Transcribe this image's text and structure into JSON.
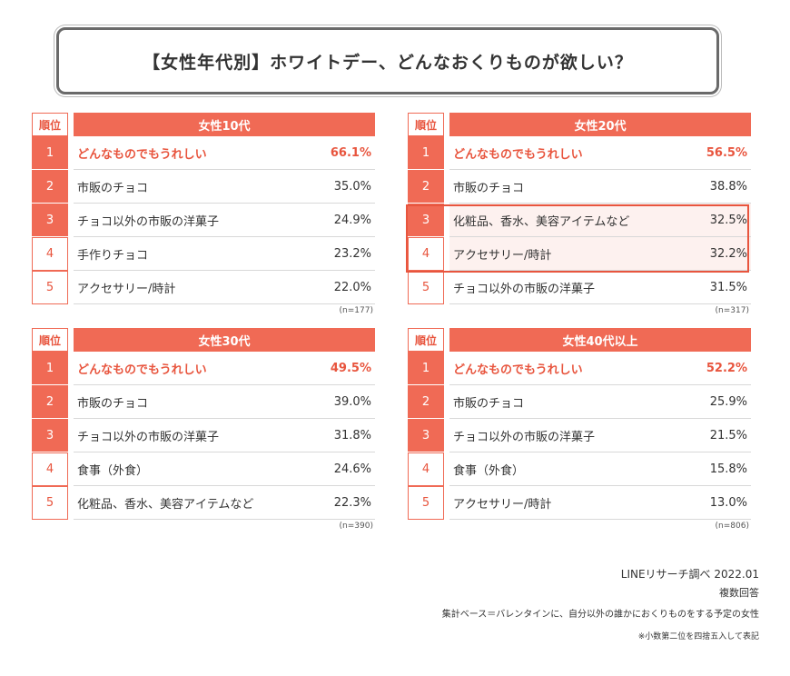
{
  "title": "【女性年代別】ホワイトデー、どんなおくりものが欲しい？",
  "rank_header": "順位",
  "chart_data": [
    {
      "type": "table",
      "group": "女性10代",
      "n": "(n=177)",
      "rows": [
        {
          "rank": "1",
          "item": "どんなものでもうれしい",
          "value": "66.1%"
        },
        {
          "rank": "2",
          "item": "市販のチョコ",
          "value": "35.0%"
        },
        {
          "rank": "3",
          "item": "チョコ以外の市販の洋菓子",
          "value": "24.9%"
        },
        {
          "rank": "4",
          "item": "手作りチョコ",
          "value": "23.2%"
        },
        {
          "rank": "5",
          "item": "アクセサリー/時計",
          "value": "22.0%"
        }
      ]
    },
    {
      "type": "table",
      "group": "女性20代",
      "n": "(n=317)",
      "rows": [
        {
          "rank": "1",
          "item": "どんなものでもうれしい",
          "value": "56.5%"
        },
        {
          "rank": "2",
          "item": "市販のチョコ",
          "value": "38.8%"
        },
        {
          "rank": "3",
          "item": "化粧品、香水、美容アイテムなど",
          "value": "32.5%"
        },
        {
          "rank": "4",
          "item": "アクセサリー/時計",
          "value": "32.2%"
        },
        {
          "rank": "5",
          "item": "チョコ以外の市販の洋菓子",
          "value": "31.5%"
        }
      ]
    },
    {
      "type": "table",
      "group": "女性30代",
      "n": "(n=390)",
      "rows": [
        {
          "rank": "1",
          "item": "どんなものでもうれしい",
          "value": "49.5%"
        },
        {
          "rank": "2",
          "item": "市販のチョコ",
          "value": "39.0%"
        },
        {
          "rank": "3",
          "item": "チョコ以外の市販の洋菓子",
          "value": "31.8%"
        },
        {
          "rank": "4",
          "item": "食事（外食）",
          "value": "24.6%"
        },
        {
          "rank": "5",
          "item": "化粧品、香水、美容アイテムなど",
          "value": "22.3%"
        }
      ]
    },
    {
      "type": "table",
      "group": "女性40代以上",
      "n": "(n=806)",
      "rows": [
        {
          "rank": "1",
          "item": "どんなものでもうれしい",
          "value": "52.2%"
        },
        {
          "rank": "2",
          "item": "市販のチョコ",
          "value": "25.9%"
        },
        {
          "rank": "3",
          "item": "チョコ以外の市販の洋菓子",
          "value": "21.5%"
        },
        {
          "rank": "4",
          "item": "食事（外食）",
          "value": "15.8%"
        },
        {
          "rank": "5",
          "item": "アクセサリー/時計",
          "value": "13.0%"
        }
      ]
    }
  ],
  "footer": {
    "source": "LINEリサーチ調べ 2022.01",
    "answer_type": "複数回答",
    "base": "集計ベース＝バレンタインに、自分以外の誰かにおくりものをする予定の女性",
    "note": "※小数第二位を四捨五入して表記"
  },
  "colors": {
    "accent": "#f06a55",
    "accent_text": "#e8553e",
    "highlight_bg": "#fdf1ef"
  }
}
